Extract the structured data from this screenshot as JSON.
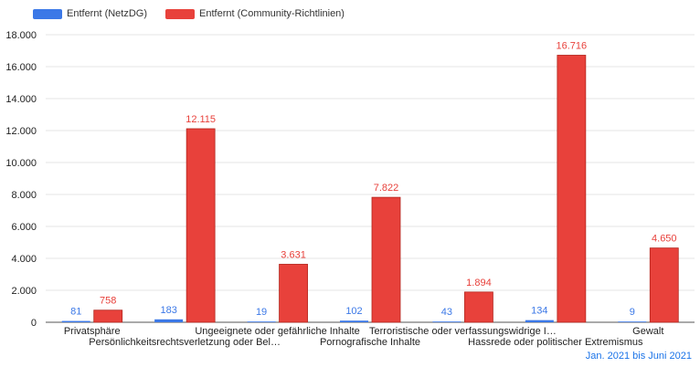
{
  "chart_data": {
    "type": "bar",
    "categories": [
      "Privatsphäre",
      "Persönlichkeitsrechtsverletzung oder Bel…",
      "Ungeeignete oder gefährliche Inhalte",
      "Pornografische Inhalte",
      "Terroristische oder verfassungswidrige I…",
      "Hassrede oder politischer Extremismus",
      "Gewalt"
    ],
    "series": [
      {
        "name": "Entfernt (NetzDG)",
        "color": "#3b78e7",
        "values": [
          81,
          183,
          19,
          102,
          43,
          134,
          9
        ],
        "labels": [
          "81",
          "183",
          "19",
          "102",
          "43",
          "134",
          "9"
        ]
      },
      {
        "name": "Entfernt (Community-Richtlinien)",
        "color": "#e8413b",
        "values": [
          758,
          12115,
          3631,
          7822,
          1894,
          16716,
          4650
        ],
        "labels": [
          "758",
          "12.115",
          "3.631",
          "7.822",
          "1.894",
          "16.716",
          "4.650"
        ]
      }
    ],
    "yticks": [
      "0",
      "2.000",
      "4.000",
      "6.000",
      "8.000",
      "10.000",
      "12.000",
      "14.000",
      "16.000",
      "18.000"
    ],
    "ylim": [
      0,
      18000
    ],
    "grid": true,
    "legend_position": "top-left",
    "xlabel": "",
    "ylabel": "",
    "title": ""
  },
  "footer_label": "Jan. 2021 bis Juni 2021"
}
